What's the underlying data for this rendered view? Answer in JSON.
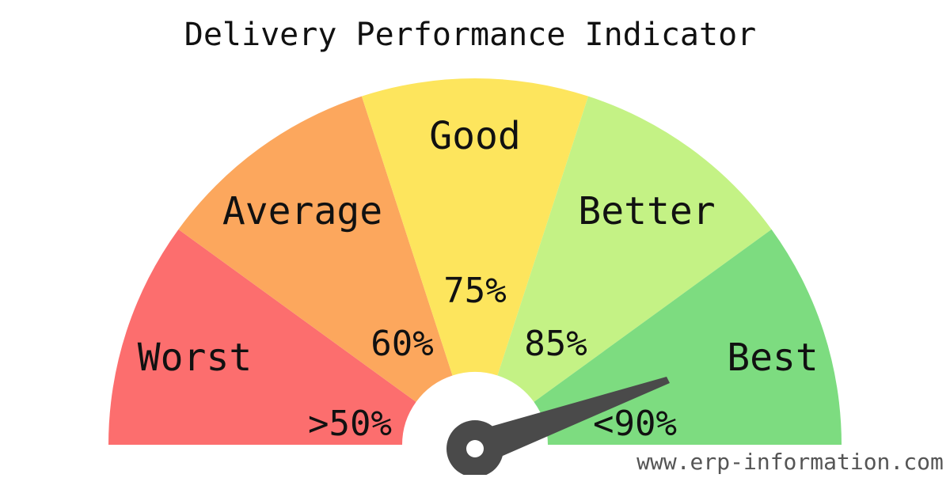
{
  "title": "Delivery Performance Indicator",
  "segments": [
    {
      "name": "Worst",
      "range_label": ">50%",
      "color": "#fc6e6e"
    },
    {
      "name": "Average",
      "range_label": "60%",
      "color": "#fca75d"
    },
    {
      "name": "Good",
      "range_label": "75%",
      "color": "#fde55d"
    },
    {
      "name": "Better",
      "range_label": "85%",
      "color": "#c4f285"
    },
    {
      "name": "Best",
      "range_label": "<90%",
      "color": "#7ddc80"
    }
  ],
  "watermark": "www.erp-information.com"
}
